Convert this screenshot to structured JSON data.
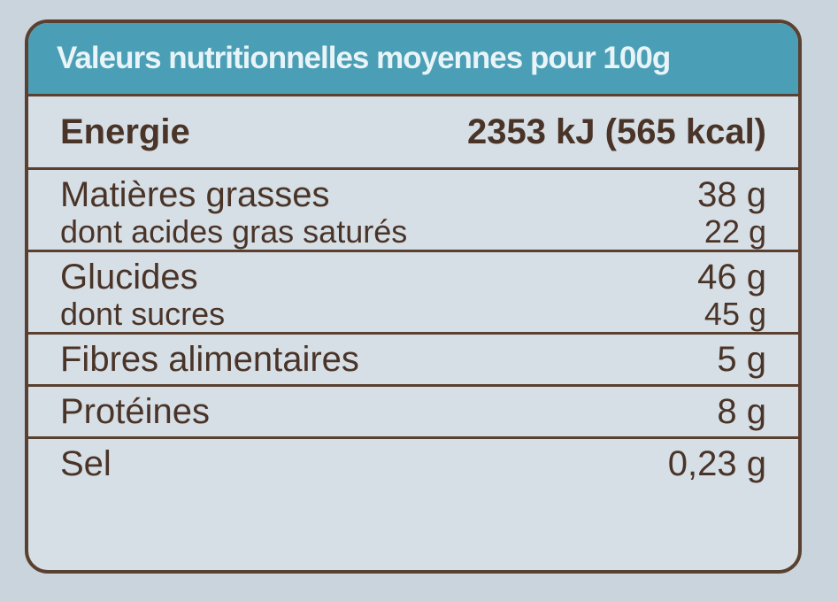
{
  "header": {
    "title": "Valeurs nutritionnelles moyennes pour 100g"
  },
  "table": {
    "rows": [
      [
        [
          "Energie",
          "2353 kJ (565 kcal)"
        ]
      ],
      [
        [
          "Matières grasses",
          "38 g"
        ],
        [
          "dont acides gras saturés",
          "22 g"
        ]
      ],
      [
        [
          "Glucides",
          "46 g"
        ],
        [
          "dont sucres",
          "45 g"
        ]
      ],
      [
        [
          "Fibres alimentaires",
          "5 g"
        ]
      ],
      [
        [
          "Protéines",
          "8 g"
        ]
      ],
      [
        [
          "Sel",
          "0,23 g"
        ]
      ]
    ]
  }
}
